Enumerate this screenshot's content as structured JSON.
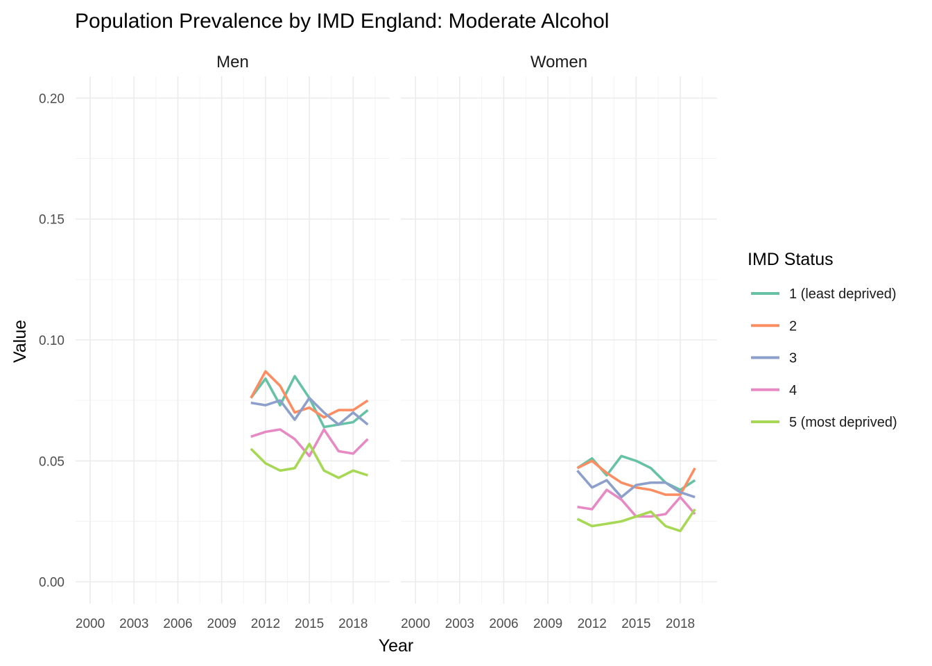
{
  "chart_data": {
    "type": "line",
    "title": "Population Prevalence by IMD England: Moderate Alcohol",
    "xlabel": "Year",
    "ylabel": "Value",
    "xlim": [
      1999,
      2020.5
    ],
    "ylim": [
      -0.009,
      0.209
    ],
    "x_ticks": [
      "2000",
      "2003",
      "2006",
      "2009",
      "2012",
      "2015",
      "2018"
    ],
    "y_ticks": [
      "0.00",
      "0.05",
      "0.10",
      "0.15",
      "0.20"
    ],
    "grid": true,
    "legend": {
      "title": "IMD Status",
      "placement": "right",
      "entries": [
        {
          "label": "1 (least deprived)",
          "color": "#66C2A5"
        },
        {
          "label": "2",
          "color": "#FC8D62"
        },
        {
          "label": "3",
          "color": "#8DA0CB"
        },
        {
          "label": "4",
          "color": "#E78AC3"
        },
        {
          "label": "5 (most deprived)",
          "color": "#A6D854"
        }
      ]
    },
    "x": [
      2011,
      2012,
      2013,
      2014,
      2015,
      2016,
      2017,
      2018,
      2019
    ],
    "panels": [
      {
        "label": "Men",
        "series": [
          {
            "name": "1 (least deprived)",
            "values": [
              0.076,
              0.084,
              0.073,
              0.085,
              0.076,
              0.064,
              0.065,
              0.066,
              0.071
            ]
          },
          {
            "name": "2",
            "values": [
              0.076,
              0.087,
              0.081,
              0.07,
              0.072,
              0.068,
              0.071,
              0.071,
              0.075
            ]
          },
          {
            "name": "3",
            "values": [
              0.074,
              0.073,
              0.075,
              0.067,
              0.076,
              0.07,
              0.065,
              0.07,
              0.065
            ]
          },
          {
            "name": "4",
            "values": [
              0.06,
              0.062,
              0.063,
              0.059,
              0.052,
              0.063,
              0.054,
              0.053,
              0.059
            ]
          },
          {
            "name": "5 (most deprived)",
            "values": [
              0.055,
              0.049,
              0.046,
              0.047,
              0.057,
              0.046,
              0.043,
              0.046,
              0.044
            ]
          }
        ]
      },
      {
        "label": "Women",
        "series": [
          {
            "name": "1 (least deprived)",
            "values": [
              0.047,
              0.051,
              0.044,
              0.052,
              0.05,
              0.047,
              0.041,
              0.038,
              0.042
            ]
          },
          {
            "name": "2",
            "values": [
              0.047,
              0.05,
              0.045,
              0.041,
              0.039,
              0.038,
              0.036,
              0.036,
              0.047
            ]
          },
          {
            "name": "3",
            "values": [
              0.046,
              0.039,
              0.042,
              0.035,
              0.04,
              0.041,
              0.041,
              0.037,
              0.035
            ]
          },
          {
            "name": "4",
            "values": [
              0.031,
              0.03,
              0.038,
              0.034,
              0.027,
              0.027,
              0.028,
              0.035,
              0.028
            ]
          },
          {
            "name": "5 (most deprived)",
            "values": [
              0.026,
              0.023,
              0.024,
              0.025,
              0.027,
              0.029,
              0.023,
              0.021,
              0.03
            ]
          }
        ]
      }
    ]
  }
}
